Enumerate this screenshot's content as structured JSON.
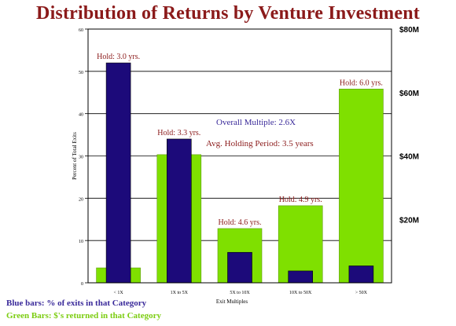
{
  "chart_data": {
    "type": "bar",
    "title": "Distribution of Returns by Venture Investment",
    "xlabel": "Exit Multiples",
    "ylabel": "Percent of Total Exits",
    "categories": [
      "< 1X",
      "1X to 5X",
      "5X to 10X",
      "10X to 50X",
      "> 50X"
    ],
    "ylim": [
      0,
      60
    ],
    "yticks": [
      0,
      10,
      20,
      30,
      40,
      50,
      60
    ],
    "y2ticks": [
      "$20M",
      "$40M",
      "$60M",
      "$80M"
    ],
    "y2values": [
      20,
      40,
      60,
      80
    ],
    "y2lim": [
      0,
      80
    ],
    "grid": true,
    "series": [
      {
        "name": "Blue bars: % of exits in that Category",
        "axis": "left",
        "color": "#1c0a7a",
        "values": [
          52,
          34,
          7.2,
          2.8,
          4
        ]
      },
      {
        "name": "Green Bars: $'s returned in that Category",
        "axis": "right",
        "color": "#7fe000",
        "values": [
          4.7,
          40.4,
          17.1,
          24.3,
          61.1
        ]
      }
    ],
    "hold_labels": [
      "Hold: 3.0 yrs.",
      "Hold: 3.3 yrs.",
      "Hold: 4.6 yrs.",
      "Hold: 4.9 yrs.",
      "Hold: 6.0 yrs."
    ],
    "annotations": [
      "Overall Multiple: 2.6X",
      "Avg. Holding Period: 3.5 years"
    ]
  },
  "colors": {
    "title": "#8b1a1a",
    "hold_label": "#8b1a1a",
    "overall_multiple": "#3a2a9a",
    "avg_holding": "#8b1a1a",
    "legend_blue": "#3a2a9a",
    "legend_green": "#7ccd11"
  }
}
